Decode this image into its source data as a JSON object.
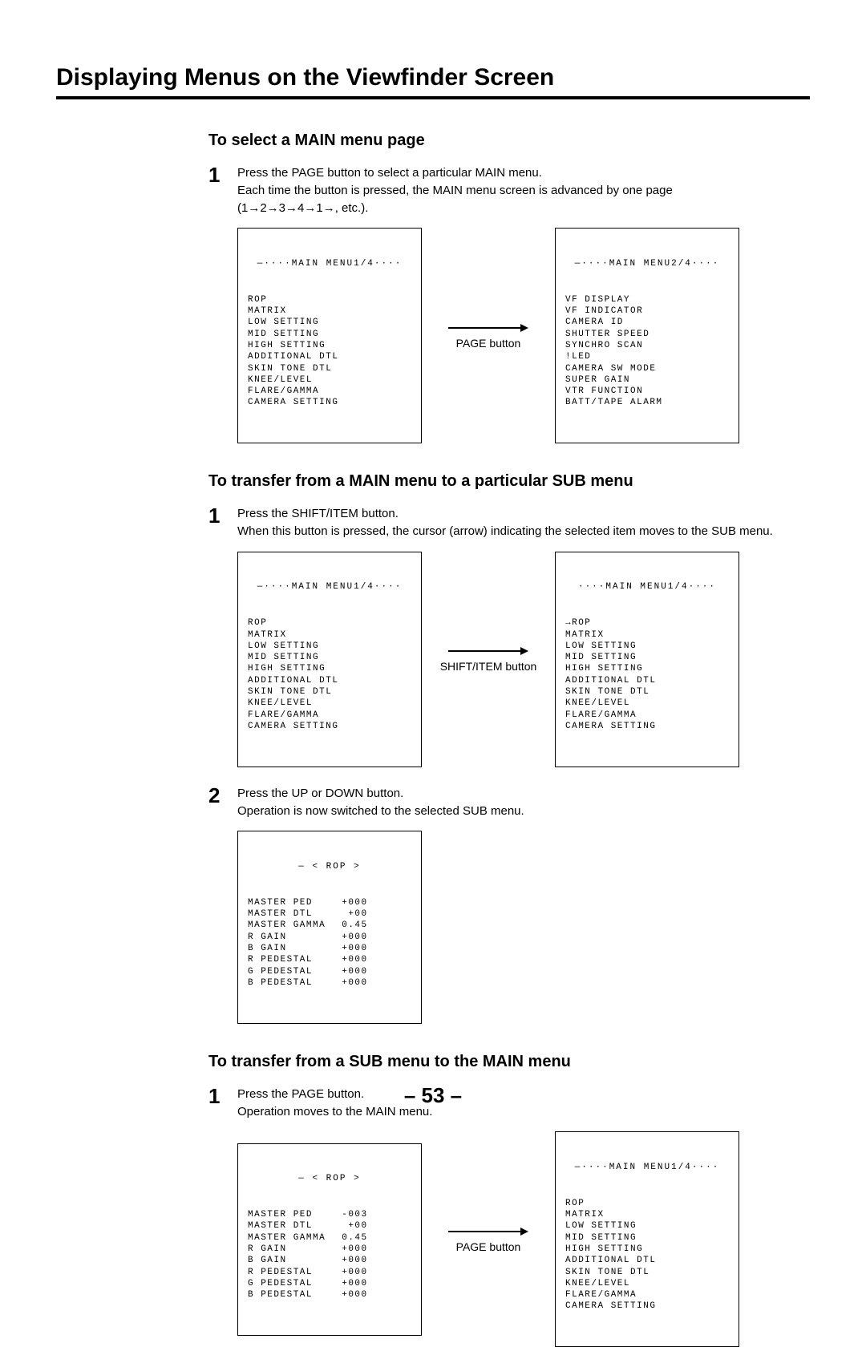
{
  "page_title": "Displaying Menus on the Viewfinder Screen",
  "page_number": "– 53 –",
  "section1": {
    "heading": "To select a MAIN menu page",
    "step1_num": "1",
    "step1_p1": "Press the PAGE button to select a particular MAIN menu.",
    "step1_p2": "Each time the button is pressed, the MAIN menu screen is advanced by one page",
    "step1_p3": "(1→2→3→4→1→, etc.).",
    "arrow_label": "PAGE button",
    "menu1": {
      "title": "—····MAIN MENU1/4····",
      "items": [
        "ROP",
        "MATRIX",
        "LOW SETTING",
        "MID SETTING",
        "HIGH SETTING",
        "ADDITIONAL DTL",
        "SKIN TONE DTL",
        "KNEE/LEVEL",
        "FLARE/GAMMA",
        "CAMERA SETTING"
      ]
    },
    "menu2": {
      "title": "—····MAIN MENU2/4····",
      "items": [
        "VF DISPLAY",
        "VF INDICATOR",
        "CAMERA ID",
        "SHUTTER SPEED",
        "SYNCHRO SCAN",
        "!LED",
        "CAMERA SW MODE",
        "SUPER GAIN",
        "VTR FUNCTION",
        "BATT/TAPE ALARM"
      ]
    }
  },
  "section2": {
    "heading": "To transfer from a MAIN menu to a particular SUB menu",
    "step1_num": "1",
    "step1_p1": "Press the SHIFT/ITEM button.",
    "step1_p2": "When this button is pressed, the cursor (arrow) indicating the selected item moves to the SUB menu.",
    "arrow1_label": "SHIFT/ITEM button",
    "menuA": {
      "title": "—····MAIN MENU1/4····",
      "items": [
        "ROP",
        "MATRIX",
        "LOW SETTING",
        "MID SETTING",
        "HIGH SETTING",
        "ADDITIONAL DTL",
        "SKIN TONE DTL",
        "KNEE/LEVEL",
        "FLARE/GAMMA",
        "CAMERA SETTING"
      ]
    },
    "menuB": {
      "title": "····MAIN MENU1/4····",
      "items": [
        "→ROP",
        "MATRIX",
        "LOW SETTING",
        "MID SETTING",
        "HIGH SETTING",
        "ADDITIONAL DTL",
        "SKIN TONE DTL",
        "KNEE/LEVEL",
        "FLARE/GAMMA",
        "CAMERA SETTING"
      ]
    },
    "step2_num": "2",
    "step2_p1": "Press the UP or DOWN button.",
    "step2_p2": "Operation is now switched to the selected SUB menu.",
    "rop1": {
      "title": "— < ROP >",
      "rows": [
        [
          "MASTER PED",
          "+000"
        ],
        [
          "MASTER DTL",
          "+00"
        ],
        [
          "MASTER GAMMA",
          "0.45"
        ],
        [
          "R GAIN",
          "+000"
        ],
        [
          "B GAIN",
          "+000"
        ],
        [
          "R PEDESTAL",
          "+000"
        ],
        [
          "G PEDESTAL",
          "+000"
        ],
        [
          "B PEDESTAL",
          "+000"
        ]
      ]
    }
  },
  "section3": {
    "heading": "To transfer from a SUB menu to the MAIN menu",
    "step1_num": "1",
    "step1_p1": "Press the PAGE button.",
    "step1_p2": "Operation moves to the MAIN menu.",
    "arrow_label": "PAGE button",
    "rop2": {
      "title": "— < ROP >",
      "rows": [
        [
          "MASTER PED",
          "-003"
        ],
        [
          "MASTER DTL",
          "+00"
        ],
        [
          "MASTER GAMMA",
          "0.45"
        ],
        [
          "R GAIN",
          "+000"
        ],
        [
          "B GAIN",
          "+000"
        ],
        [
          "R PEDESTAL",
          "+000"
        ],
        [
          "G PEDESTAL",
          "+000"
        ],
        [
          "B PEDESTAL",
          "+000"
        ]
      ]
    },
    "menuC": {
      "title": "—····MAIN MENU1/4····",
      "items": [
        "ROP",
        "MATRIX",
        "LOW SETTING",
        "MID SETTING",
        "HIGH SETTING",
        "ADDITIONAL DTL",
        "SKIN TONE DTL",
        "KNEE/LEVEL",
        "FLARE/GAMMA",
        "CAMERA SETTING"
      ]
    }
  }
}
